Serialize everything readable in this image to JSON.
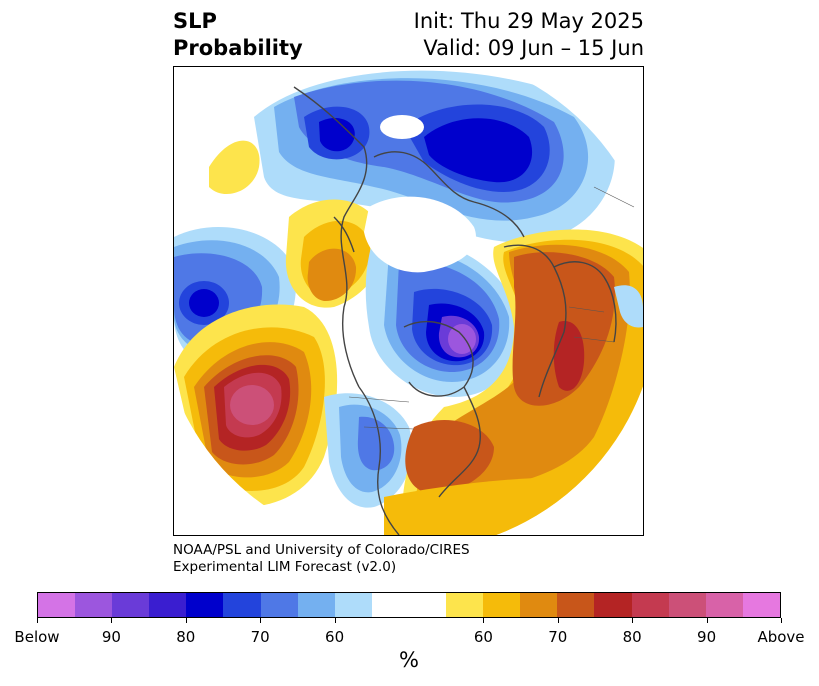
{
  "title": {
    "left_line1": "SLP",
    "left_line2": "Probability",
    "right_line1": "Init: Thu 29 May 2025",
    "right_line2": "Valid: 09 Jun – 15 Jun"
  },
  "credit": {
    "line1": "NOAA/PSL and University of Colorado/CIRES",
    "line2": "Experimental LIM Forecast (v2.0)"
  },
  "colorbar": {
    "unit": "%",
    "colors": [
      "#d473e6",
      "#9c56de",
      "#6a3bd8",
      "#3a1ed0",
      "#0000cc",
      "#2344dc",
      "#4f78e6",
      "#74b0f0",
      "#aedcfa",
      "#ffffff",
      "#ffffff",
      "#fde44c",
      "#f5bb0a",
      "#e08a10",
      "#c8561a",
      "#b42424",
      "#c43a50",
      "#cc5078",
      "#d862a8",
      "#e678e0"
    ],
    "labels": [
      "Below",
      "90",
      "80",
      "70",
      "60",
      "60",
      "70",
      "80",
      "90",
      "Above"
    ]
  },
  "map": {
    "projection": "north-polar-stereographic",
    "fill_colors": {
      "blue_light": "#aedcfa",
      "blue_mid": "#74b0f0",
      "blue": "#4f78e6",
      "blue_dark": "#2344dc",
      "blue_deep": "#0000cc",
      "purple": "#6a3bd8",
      "violet": "#9c56de",
      "yellow": "#fde44c",
      "gold": "#f5bb0a",
      "orange": "#e08a10",
      "rust": "#c8561a",
      "red": "#b42424",
      "rose": "#c43a50",
      "pink": "#cc5078"
    }
  }
}
